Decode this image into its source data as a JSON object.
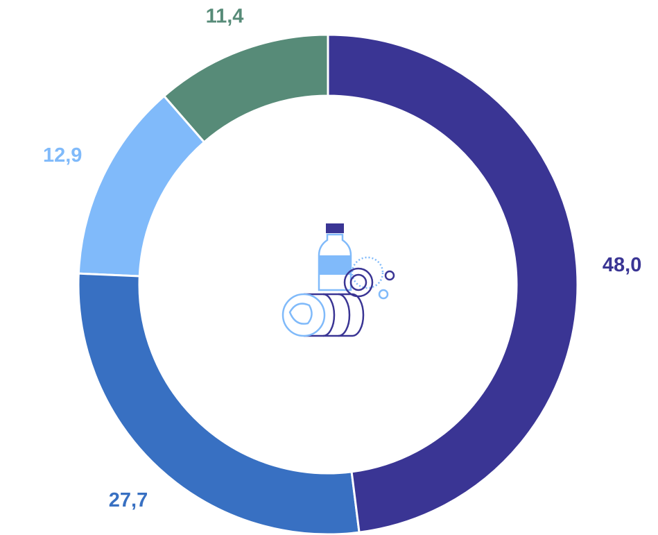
{
  "chart_data": {
    "type": "donut",
    "categories": [
      null,
      null,
      null,
      null
    ],
    "values": [
      48.0,
      27.7,
      12.9,
      11.4
    ],
    "value_labels": [
      "48,0",
      "27,7",
      "12,9",
      "11,4"
    ],
    "colors": [
      "#3a3594",
      "#3870c2",
      "#80bafa",
      "#578b78"
    ]
  }
}
